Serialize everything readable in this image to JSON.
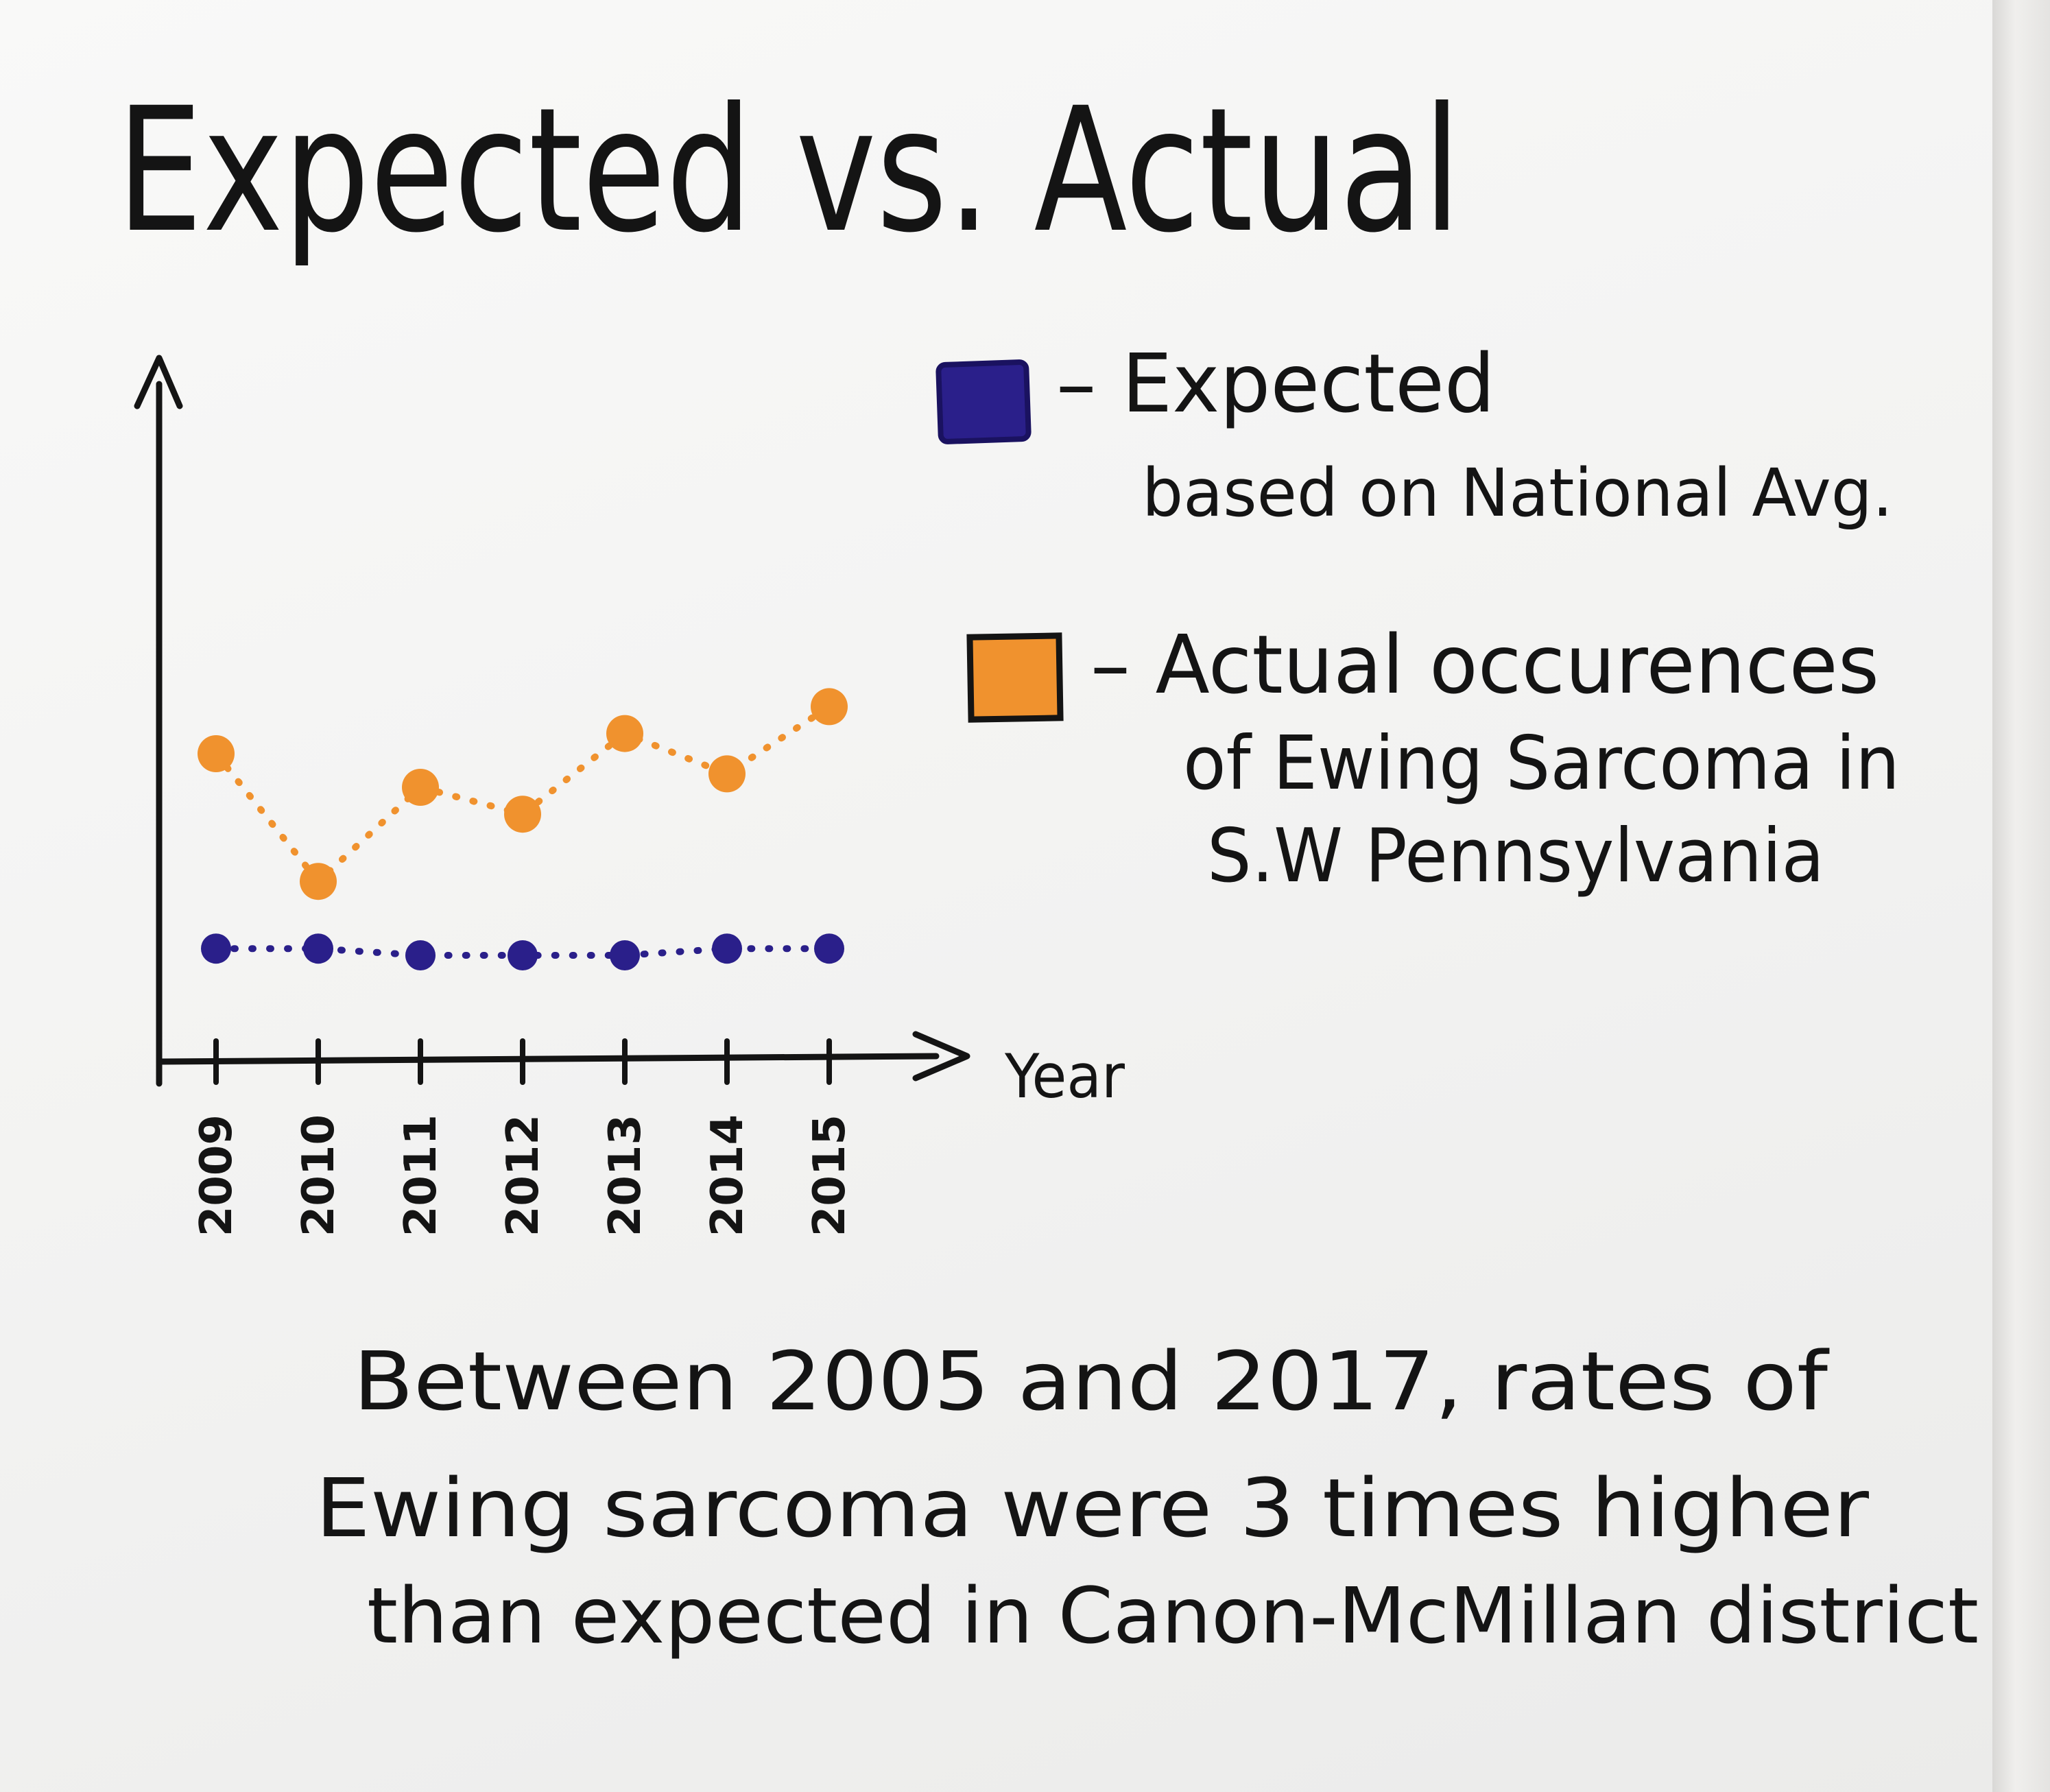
{
  "chart_data": {
    "type": "scatter",
    "title": "Expected vs. Actual",
    "xlabel": "Year",
    "ylabel": "",
    "x": [
      "2009",
      "2010",
      "2011",
      "2012",
      "2013",
      "2014",
      "2015"
    ],
    "ylim": [
      0,
      10
    ],
    "series": [
      {
        "name": "Expected based on National Avg.",
        "color": "#2a1f8a",
        "values": [
          1.6,
          1.6,
          1.5,
          1.5,
          1.5,
          1.6,
          1.6
        ]
      },
      {
        "name": "Actual occurences of Ewing Sarcoma in S.W Pennsylvania",
        "color": "#f0922e",
        "values": [
          4.5,
          2.6,
          4.0,
          3.6,
          4.8,
          4.2,
          5.2
        ]
      }
    ],
    "legend_position": "right",
    "grid": false,
    "connector_style": "dotted"
  },
  "legend": {
    "expected": {
      "line1": "– Expected",
      "line2": "based on National Avg."
    },
    "actual": {
      "line1": "– Actual occurences",
      "line2": "of Ewing Sarcoma in",
      "line3": "S.W Pennsylvania"
    }
  },
  "caption": {
    "line1": "Between 2005 and 2017, rates of",
    "line2": "Ewing sarcoma were 3 times higher",
    "line3": "than expected in Canon-McMillan district"
  }
}
